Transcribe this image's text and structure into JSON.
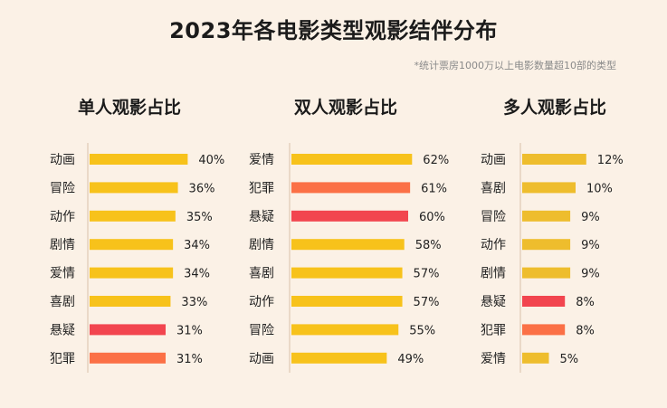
{
  "title": "2023年各电影类型观影结伴分布",
  "subtitle": "*统计票房1000万以上电影数量超10部的类型",
  "colors": {
    "yellow": "#f7c21b",
    "mustard": "#eebd2d",
    "coral": "#fb7046",
    "red": "#f2454f",
    "axis": "#ead9c8",
    "background": "#fbf1e6"
  },
  "chart_data": [
    {
      "type": "bar",
      "orientation": "horizontal",
      "title": "单人观影占比",
      "categories": [
        "动画",
        "冒险",
        "动作",
        "剧情",
        "爱情",
        "喜剧",
        "悬疑",
        "犯罪"
      ],
      "values": [
        40,
        36,
        35,
        34,
        34,
        33,
        31,
        31
      ],
      "value_labels": [
        "40%",
        "36%",
        "35%",
        "34%",
        "34%",
        "33%",
        "31%",
        "31%"
      ],
      "bar_colors": [
        "yellow",
        "yellow",
        "yellow",
        "yellow",
        "yellow",
        "yellow",
        "red",
        "coral"
      ],
      "unit": "%"
    },
    {
      "type": "bar",
      "orientation": "horizontal",
      "title": "双人观影占比",
      "categories": [
        "爱情",
        "犯罪",
        "悬疑",
        "剧情",
        "喜剧",
        "动作",
        "冒险",
        "动画"
      ],
      "values": [
        62,
        61,
        60,
        58,
        57,
        57,
        55,
        49
      ],
      "value_labels": [
        "62%",
        "61%",
        "60%",
        "58%",
        "57%",
        "57%",
        "55%",
        "49%"
      ],
      "bar_colors": [
        "yellow",
        "coral",
        "red",
        "yellow",
        "yellow",
        "yellow",
        "yellow",
        "yellow"
      ],
      "unit": "%"
    },
    {
      "type": "bar",
      "orientation": "horizontal",
      "title": "多人观影占比",
      "categories": [
        "动画",
        "喜剧",
        "冒险",
        "动作",
        "剧情",
        "悬疑",
        "犯罪",
        "爱情"
      ],
      "values": [
        12,
        10,
        9,
        9,
        9,
        8,
        8,
        5
      ],
      "value_labels": [
        "12%",
        "10%",
        "9%",
        "9%",
        "9%",
        "8%",
        "8%",
        "5%"
      ],
      "bar_colors": [
        "mustard",
        "mustard",
        "mustard",
        "mustard",
        "mustard",
        "red",
        "coral",
        "mustard"
      ],
      "unit": "%"
    }
  ]
}
